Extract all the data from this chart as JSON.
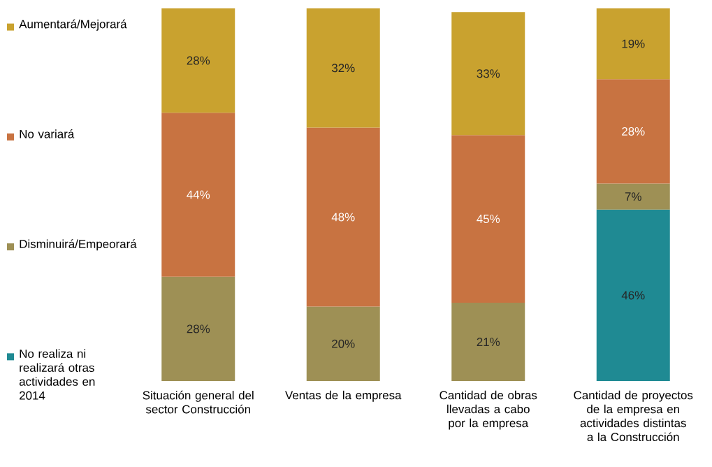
{
  "chart_data": {
    "type": "bar",
    "stacked": true,
    "legend": "left",
    "categories": [
      "Situación general del sector Construcción",
      "Ventas de la empresa",
      "Cantidad de obras llevadas a cabo por la empresa",
      "Cantidad de proyectos de la empresa en actividades distintas a la Construcción"
    ],
    "series": [
      {
        "name": "No realiza ni realizará otras actividades en 2014",
        "color": "#1f8a93",
        "values": [
          null,
          null,
          null,
          46
        ],
        "value_labels": [
          null,
          null,
          null,
          "46%"
        ]
      },
      {
        "name": "Disminuirá/Empeorará",
        "color": "#9e9055",
        "values": [
          28,
          20,
          21,
          7
        ],
        "value_labels": [
          "28%",
          "20%",
          "21%",
          "7%"
        ]
      },
      {
        "name": "No variará",
        "color": "#c87341",
        "values": [
          44,
          48,
          45,
          28
        ],
        "value_labels": [
          "44%",
          "48%",
          "45%",
          "28%"
        ]
      },
      {
        "name": "Aumentará/Mejorará",
        "color": "#c9a22f",
        "values": [
          28,
          32,
          33,
          19
        ],
        "value_labels": [
          "28%",
          "32%",
          "33%",
          "19%"
        ]
      }
    ]
  }
}
